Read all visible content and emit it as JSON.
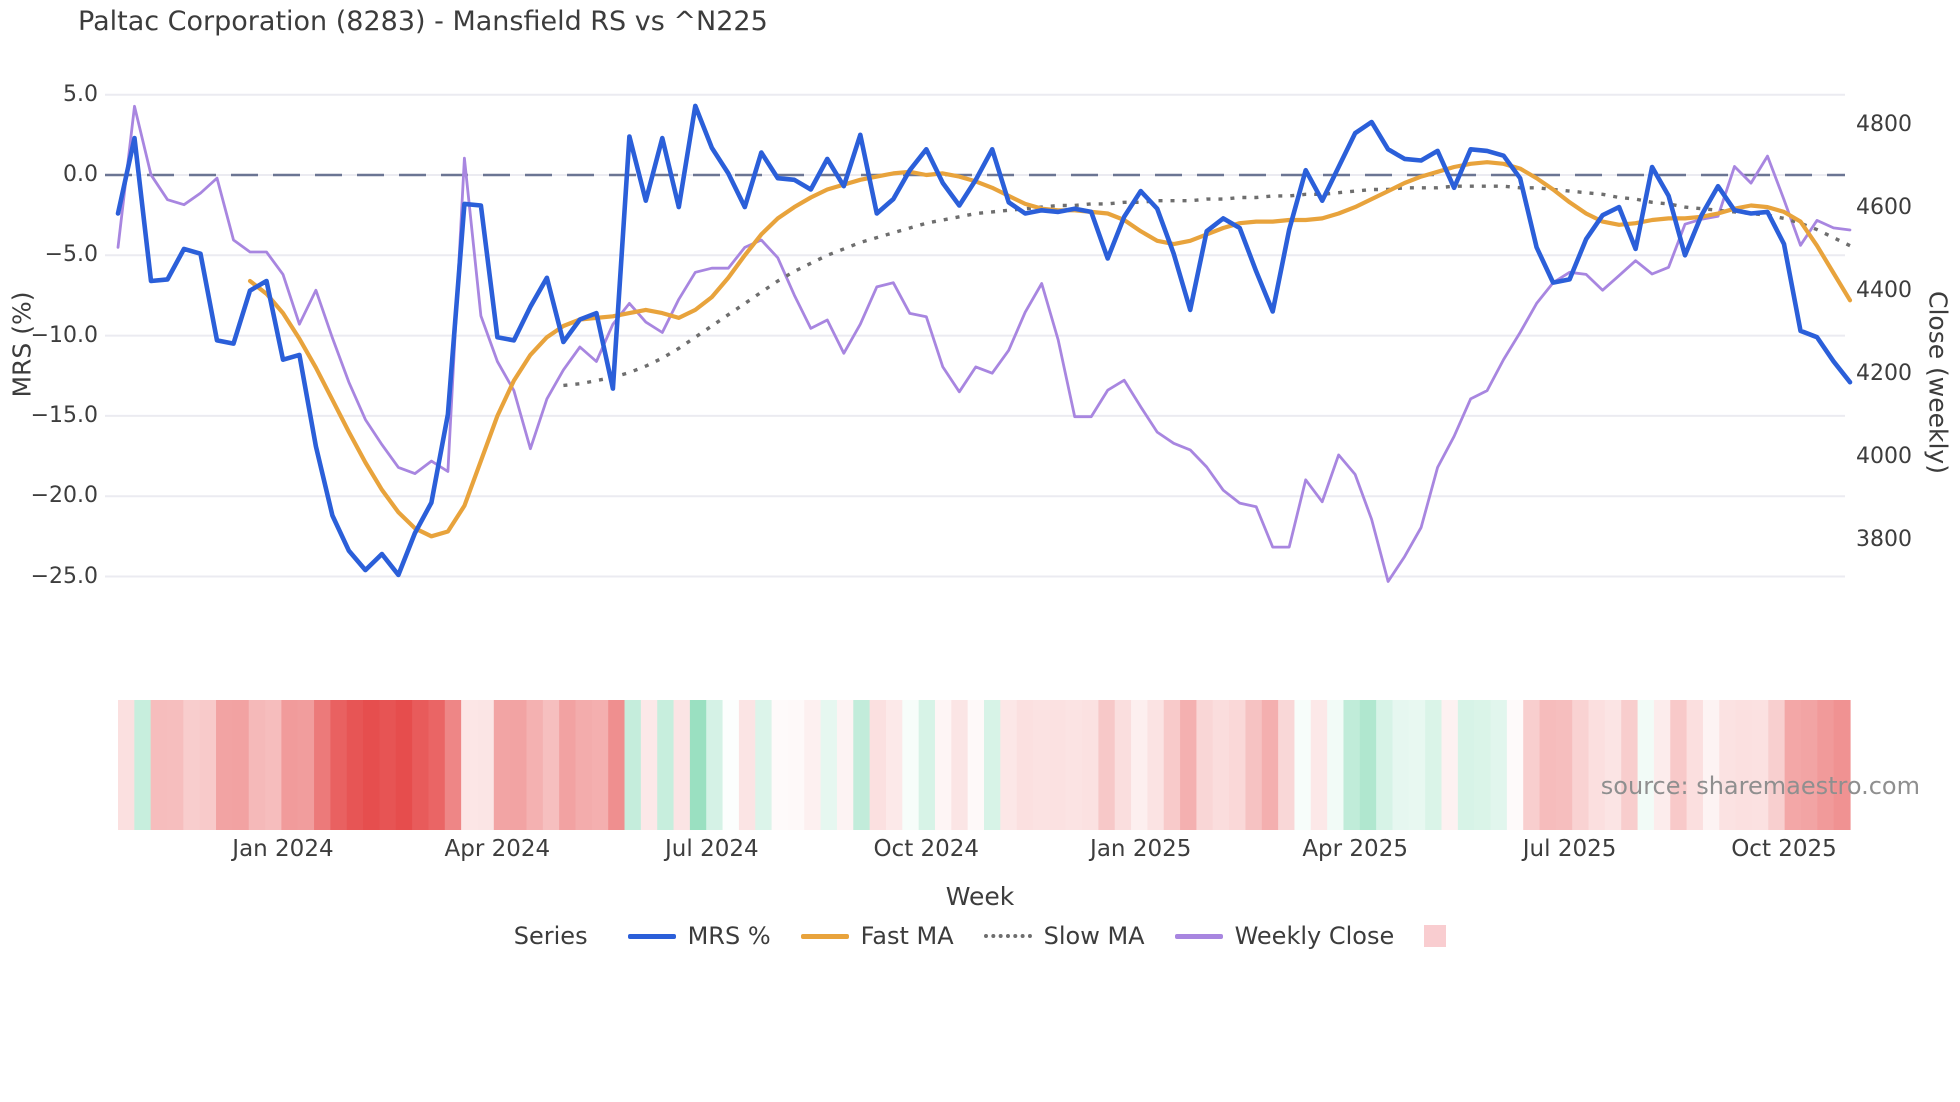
{
  "title": "Paltac Corporation (8283) - Mansfield RS vs ^N225",
  "watermark": "source: sharemaestro.com",
  "colors": {
    "mrs": "#2b5fd9",
    "fast_ma": "#e8a33c",
    "slow_ma": "#6e6e6e",
    "weekly_close": "#a886e0",
    "zero_line": "#6b7593",
    "grid": "#ebebf1",
    "heat_negative": "#e64c4c",
    "heat_positive": "#8adbb8",
    "legend_patch": "#f9cdd0",
    "text": "#3c3c3c",
    "watermark_text": "#8f8f8f"
  },
  "axes": {
    "left": {
      "label": "MRS (%)",
      "tick_values": [
        5.0,
        0.0,
        -5.0,
        -10.0,
        -15.0,
        -20.0,
        -25.0
      ],
      "tick_labels": [
        "5.0",
        "0.0",
        "−5.0",
        "−10.0",
        "−15.0",
        "−20.0",
        "−25.0"
      ]
    },
    "right": {
      "label": "Close (weekly)",
      "tick_values": [
        4800,
        4600,
        4400,
        4200,
        4000,
        3800
      ],
      "tick_labels": [
        "4800",
        "4600",
        "4400",
        "4200",
        "4000",
        "3800"
      ]
    },
    "x": {
      "label": "Week",
      "ticks": [
        {
          "index": 10,
          "label": "Jan 2024"
        },
        {
          "index": 23,
          "label": "Apr 2024"
        },
        {
          "index": 36,
          "label": "Jul 2024"
        },
        {
          "index": 49,
          "label": "Oct 2024"
        },
        {
          "index": 62,
          "label": "Jan 2025"
        },
        {
          "index": 75,
          "label": "Apr 2025"
        },
        {
          "index": 88,
          "label": "Jul 2025"
        },
        {
          "index": 101,
          "label": "Oct 2025"
        }
      ]
    }
  },
  "legend": {
    "title": "Series",
    "items": [
      {
        "label": "MRS %",
        "type": "line",
        "color": "#2b5fd9"
      },
      {
        "label": "Fast MA",
        "type": "line",
        "color": "#e8a33c"
      },
      {
        "label": "Slow MA",
        "type": "dotted",
        "color": "#6e6e6e"
      },
      {
        "label": "Weekly Close",
        "type": "line",
        "color": "#a886e0"
      },
      {
        "label": "",
        "type": "patch",
        "color": "#f9cdd0"
      }
    ]
  },
  "chart_data": {
    "type": "line",
    "x_unit": "week_index",
    "n_weeks": 106,
    "left_axis_range": [
      -25.0,
      5.0
    ],
    "right_axis_range": [
      3800,
      4800
    ],
    "zero_reference_line": 0.0,
    "grid": "horizontal",
    "heat_strip": "diverging red-green colormap of MRS % per week",
    "series": [
      {
        "name": "MRS %",
        "axis": "left",
        "values": [
          -2.4,
          2.3,
          -6.6,
          -6.5,
          -4.6,
          -4.9,
          -10.3,
          -10.5,
          -7.2,
          -6.6,
          -11.5,
          -11.2,
          -16.9,
          -21.2,
          -23.4,
          -24.6,
          -23.6,
          -24.9,
          -22.3,
          -20.4,
          -14.9,
          -1.8,
          -1.9,
          -10.1,
          -10.3,
          -8.2,
          -6.4,
          -10.4,
          -9.0,
          -8.6,
          -13.3,
          2.4,
          -1.6,
          2.3,
          -2.0,
          4.3,
          1.7,
          0.1,
          -2.0,
          1.4,
          -0.2,
          -0.3,
          -0.9,
          1.0,
          -0.7,
          2.5,
          -2.4,
          -1.5,
          0.3,
          1.6,
          -0.5,
          -1.9,
          -0.3,
          1.6,
          -1.7,
          -2.4,
          -2.2,
          -2.3,
          -2.1,
          -2.3,
          -5.2,
          -2.6,
          -1.0,
          -2.1,
          -4.9,
          -8.4,
          -3.5,
          -2.7,
          -3.3,
          -6.0,
          -8.5,
          -3.4,
          0.3,
          -1.6,
          0.5,
          2.6,
          3.3,
          1.6,
          1.0,
          0.9,
          1.5,
          -0.8,
          1.6,
          1.5,
          1.2,
          -0.2,
          -4.5,
          -6.7,
          -6.5,
          -4.0,
          -2.5,
          -2.0,
          -4.6,
          0.5,
          -1.3,
          -5.0,
          -2.5,
          -0.7,
          -2.2,
          -2.4,
          -2.3,
          -4.3,
          -9.7,
          -10.1,
          -11.6,
          -12.9
        ]
      },
      {
        "name": "Fast MA",
        "axis": "left",
        "values": [
          null,
          null,
          null,
          null,
          null,
          null,
          null,
          null,
          -6.6,
          -7.4,
          -8.6,
          -10.2,
          -12.0,
          -14.0,
          -16.0,
          -17.9,
          -19.6,
          -21.0,
          -22.0,
          -22.5,
          -22.2,
          -20.6,
          -17.8,
          -15.0,
          -12.8,
          -11.2,
          -10.1,
          -9.4,
          -9.0,
          -8.9,
          -8.8,
          -8.6,
          -8.4,
          -8.6,
          -8.9,
          -8.4,
          -7.6,
          -6.4,
          -5.0,
          -3.7,
          -2.7,
          -2.0,
          -1.4,
          -0.9,
          -0.6,
          -0.3,
          -0.1,
          0.1,
          0.2,
          0.0,
          0.1,
          -0.1,
          -0.4,
          -0.8,
          -1.3,
          -1.8,
          -2.1,
          -2.2,
          -2.2,
          -2.3,
          -2.4,
          -2.8,
          -3.5,
          -4.1,
          -4.3,
          -4.1,
          -3.7,
          -3.3,
          -3.0,
          -2.9,
          -2.9,
          -2.8,
          -2.8,
          -2.7,
          -2.4,
          -2.0,
          -1.5,
          -1.0,
          -0.5,
          -0.1,
          0.2,
          0.5,
          0.7,
          0.8,
          0.7,
          0.4,
          -0.2,
          -0.9,
          -1.7,
          -2.4,
          -2.9,
          -3.1,
          -3.0,
          -2.8,
          -2.7,
          -2.7,
          -2.6,
          -2.4,
          -2.1,
          -1.9,
          -2.0,
          -2.3,
          -2.9,
          -4.4,
          -6.1,
          -7.8
        ]
      },
      {
        "name": "Slow MA",
        "axis": "left",
        "values": [
          null,
          null,
          null,
          null,
          null,
          null,
          null,
          null,
          null,
          null,
          null,
          null,
          null,
          null,
          null,
          null,
          null,
          null,
          null,
          null,
          null,
          null,
          null,
          null,
          null,
          null,
          null,
          -13.1,
          -13.0,
          -12.8,
          -12.6,
          -12.3,
          -11.9,
          -11.4,
          -10.8,
          -10.1,
          -9.4,
          -8.7,
          -8.0,
          -7.3,
          -6.6,
          -6.0,
          -5.5,
          -5.0,
          -4.6,
          -4.2,
          -3.9,
          -3.6,
          -3.3,
          -3.0,
          -2.8,
          -2.6,
          -2.4,
          -2.3,
          -2.2,
          -2.1,
          -2.0,
          -1.9,
          -1.9,
          -1.8,
          -1.8,
          -1.7,
          -1.7,
          -1.6,
          -1.6,
          -1.6,
          -1.5,
          -1.5,
          -1.4,
          -1.4,
          -1.3,
          -1.3,
          -1.2,
          -1.2,
          -1.1,
          -1.0,
          -0.9,
          -0.9,
          -0.8,
          -0.8,
          -0.8,
          -0.7,
          -0.7,
          -0.7,
          -0.7,
          -0.8,
          -0.8,
          -0.9,
          -1.0,
          -1.1,
          -1.2,
          -1.4,
          -1.5,
          -1.7,
          -1.8,
          -2.0,
          -2.1,
          -2.2,
          -2.3,
          -2.4,
          -2.5,
          -2.7,
          -3.0,
          -3.4,
          -3.9,
          -4.4
        ]
      },
      {
        "name": "Weekly Close",
        "axis": "right",
        "values": [
          4505,
          4845,
          4680,
          4620,
          4608,
          4636,
          4672,
          4523,
          4494,
          4494,
          4440,
          4320,
          4402,
          4287,
          4180,
          4090,
          4030,
          3975,
          3960,
          3990,
          3965,
          4720,
          4340,
          4230,
          4160,
          4020,
          4140,
          4210,
          4265,
          4230,
          4320,
          4370,
          4325,
          4300,
          4380,
          4445,
          4455,
          4455,
          4505,
          4523,
          4480,
          4390,
          4310,
          4330,
          4250,
          4320,
          4410,
          4420,
          4346,
          4338,
          4217,
          4157,
          4217,
          4202,
          4257,
          4349,
          4418,
          4282,
          4097,
          4097,
          4161,
          4185,
          4121,
          4060,
          4033,
          4017,
          3976,
          3920,
          3889,
          3880,
          3783,
          3783,
          3945,
          3892,
          4005,
          3958,
          3850,
          3700,
          3760,
          3830,
          3975,
          4050,
          4140,
          4160,
          4235,
          4300,
          4370,
          4420,
          4445,
          4440,
          4402,
          4437,
          4473,
          4441,
          4457,
          4561,
          4573,
          4580,
          4700,
          4660,
          4725,
          4620,
          4510,
          4570,
          4552,
          4547
        ]
      }
    ]
  }
}
